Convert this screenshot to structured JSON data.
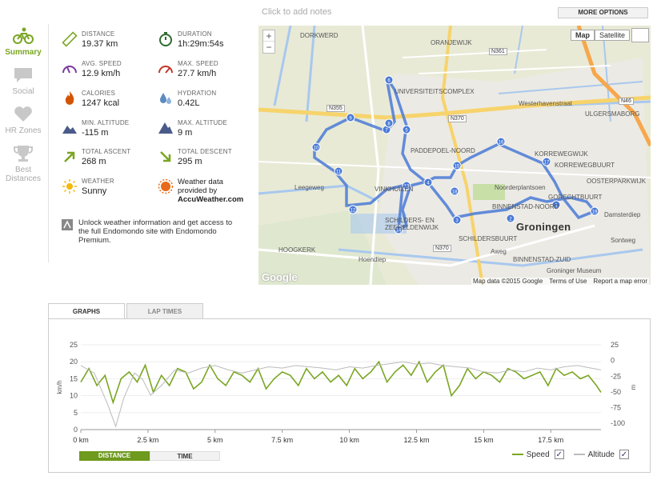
{
  "notes_placeholder": "Click to add notes",
  "more_options": "MORE OPTIONS",
  "nav": [
    {
      "label": "Summary",
      "icon": "bicycle-icon"
    },
    {
      "label": "Social",
      "icon": "speech-bubble-icon"
    },
    {
      "label": "HR Zones",
      "icon": "heart-icon"
    },
    {
      "label": "Best Distances",
      "icon": "trophy-icon"
    }
  ],
  "stats": {
    "distance": {
      "label": "DISTANCE",
      "value": "19.37 km"
    },
    "duration": {
      "label": "DURATION",
      "value": "1h:29m:54s"
    },
    "avg_speed": {
      "label": "AVG. SPEED",
      "value": "12.9 km/h"
    },
    "max_speed": {
      "label": "MAX. SPEED",
      "value": "27.7 km/h"
    },
    "calories": {
      "label": "CALORIES",
      "value": "1247 kcal"
    },
    "hydration": {
      "label": "HYDRATION",
      "value": "0.42L"
    },
    "min_alt": {
      "label": "MIN. ALTITUDE",
      "value": "-115 m"
    },
    "max_alt": {
      "label": "MAX. ALTITUDE",
      "value": "9 m"
    },
    "ascent": {
      "label": "TOTAL ASCENT",
      "value": "268 m"
    },
    "descent": {
      "label": "TOTAL DESCENT",
      "value": "295 m"
    },
    "weather": {
      "label": "WEATHER",
      "value": "Sunny"
    },
    "accuweather": {
      "line1": "Weather data",
      "line2": "provided by",
      "line3": "AccuWeather.com"
    },
    "unlock_text": "Unlock weather information and get access to the full Endomondo site with Endomondo Premium."
  },
  "map": {
    "btn_map": "Map",
    "btn_satellite": "Satellite",
    "zoom_in": "+",
    "zoom_out": "−",
    "google": "Google",
    "footer_data": "Map data ©2015 Google",
    "footer_terms": "Terms of Use",
    "footer_report": "Report a map error",
    "labels": {
      "dorkwerd": "DORKWERD",
      "oranjewijk": "ORANJEWIJK",
      "universiteitscomplex": "UNIVERSITEITSCOMPLEX",
      "paddepoel": "PADDEPOEL-NOORD",
      "korrewegwijk": "KORREWEGWIJK",
      "korrewegbuurt": "KORREWEGBUURT",
      "ulgersmaborg": "ULGERSMABORG",
      "oosterparkwijk": "OOSTERPARKWIJK",
      "noorderplantsoen": "Noorderplantsoen",
      "binnenstad_noord": "BINNENSTAD-NOORD",
      "groningen": "Groningen",
      "gorechtbuurt": "GORECHTBUURT",
      "schildersbuurt": "SCHILDERSBUURT",
      "binnenstad_zuid": "BINNENSTAD-ZUID",
      "museum": "Groninger Museum",
      "vinkhuizen": "VINKHUIZEN",
      "schilders_en": "SCHILDERS- EN",
      "zeeheldenwijk": "ZEEHELDENWIJK",
      "hoogkerk": "HOOGKERK",
      "westerhavenstraat": "Westerhavenstraat",
      "leegeweg": "Leegeweg",
      "hoendiep": "Hoendiep",
      "aweg": "Aweg",
      "damsterdiep": "Damsterdiep",
      "sontweg": "Sontweg",
      "n361": "N361",
      "n370": "N370",
      "n355": "N355",
      "n46": "N46"
    },
    "route_markers": [
      "1",
      "2",
      "3",
      "4",
      "5",
      "6",
      "7",
      "8",
      "9",
      "10",
      "11",
      "12",
      "13",
      "14",
      "15",
      "16",
      "17",
      "18",
      "19"
    ]
  },
  "graph": {
    "tab_graphs": "GRAPHS",
    "tab_laps": "LAP TIMES",
    "toggle_distance": "DISTANCE",
    "toggle_time": "TIME",
    "legend_speed": "Speed",
    "legend_altitude": "Altitude",
    "speed_color": "#7aa623",
    "altitude_color": "#bbbbbb",
    "y_left_label": "km/h",
    "y_right_label": "m",
    "y_left_ticks": [
      "25",
      "20",
      "15",
      "10",
      "5",
      "0"
    ],
    "y_right_ticks": [
      "25",
      "0",
      "-25",
      "-50",
      "-75",
      "-100"
    ],
    "x_ticks": [
      "0 km",
      "2.5 km",
      "5 km",
      "7.5 km",
      "10 km",
      "12.5 km",
      "15 km",
      "17.5 km"
    ]
  },
  "chart_data": {
    "type": "line",
    "xlabel": "",
    "ylabel": "km/h",
    "x_unit": "km",
    "xlim": [
      0,
      19.37
    ],
    "ylim": [
      0,
      25
    ],
    "y2lim": [
      -110,
      25
    ],
    "series": [
      {
        "name": "Speed",
        "axis": "left",
        "x": [
          0,
          0.3,
          0.6,
          0.9,
          1.2,
          1.5,
          1.8,
          2.1,
          2.4,
          2.7,
          3.0,
          3.3,
          3.6,
          3.9,
          4.2,
          4.5,
          4.8,
          5.1,
          5.4,
          5.7,
          6.0,
          6.3,
          6.6,
          6.9,
          7.2,
          7.5,
          7.8,
          8.1,
          8.4,
          8.7,
          9.0,
          9.3,
          9.6,
          9.9,
          10.2,
          10.5,
          10.8,
          11.1,
          11.4,
          11.7,
          12.0,
          12.3,
          12.6,
          12.9,
          13.2,
          13.5,
          13.8,
          14.1,
          14.4,
          14.7,
          15.0,
          15.3,
          15.6,
          15.9,
          16.2,
          16.5,
          16.8,
          17.1,
          17.4,
          17.7,
          18.0,
          18.3,
          18.6,
          18.9,
          19.2,
          19.37
        ],
        "y": [
          14,
          18,
          13,
          16,
          8,
          15,
          17,
          14,
          19,
          11,
          16,
          13,
          18,
          17,
          12,
          14,
          19,
          15,
          13,
          17,
          16,
          14,
          18,
          12,
          15,
          17,
          16,
          13,
          18,
          15,
          17,
          14,
          16,
          13,
          18,
          15,
          17,
          20,
          14,
          17,
          19,
          16,
          20,
          14,
          17,
          19,
          10,
          13,
          18,
          15,
          17,
          16,
          14,
          18,
          17,
          15,
          16,
          17,
          13,
          18,
          16,
          17,
          15,
          16,
          13,
          11
        ]
      },
      {
        "name": "Altitude",
        "axis": "right",
        "x": [
          0,
          0.5,
          1.0,
          1.3,
          1.6,
          2.0,
          2.3,
          2.6,
          3.0,
          3.5,
          4.0,
          4.5,
          5.0,
          5.5,
          6.0,
          6.5,
          7.0,
          7.5,
          8.0,
          8.5,
          9.0,
          9.5,
          10.0,
          10.5,
          11.0,
          11.5,
          12.0,
          12.5,
          13.0,
          13.5,
          14.0,
          14.5,
          15.0,
          15.5,
          16.0,
          16.5,
          17.0,
          17.5,
          18.0,
          18.5,
          19.0,
          19.37
        ],
        "y": [
          -8,
          -20,
          -70,
          -105,
          -60,
          -20,
          -30,
          -55,
          -40,
          -15,
          -20,
          -12,
          -8,
          -15,
          -20,
          -15,
          -10,
          -12,
          -8,
          -10,
          -12,
          -15,
          -10,
          -12,
          -8,
          -5,
          -2,
          -6,
          -4,
          -8,
          -10,
          -12,
          -18,
          -20,
          -15,
          -18,
          -12,
          -15,
          -10,
          -8,
          -12,
          -15
        ]
      }
    ]
  }
}
